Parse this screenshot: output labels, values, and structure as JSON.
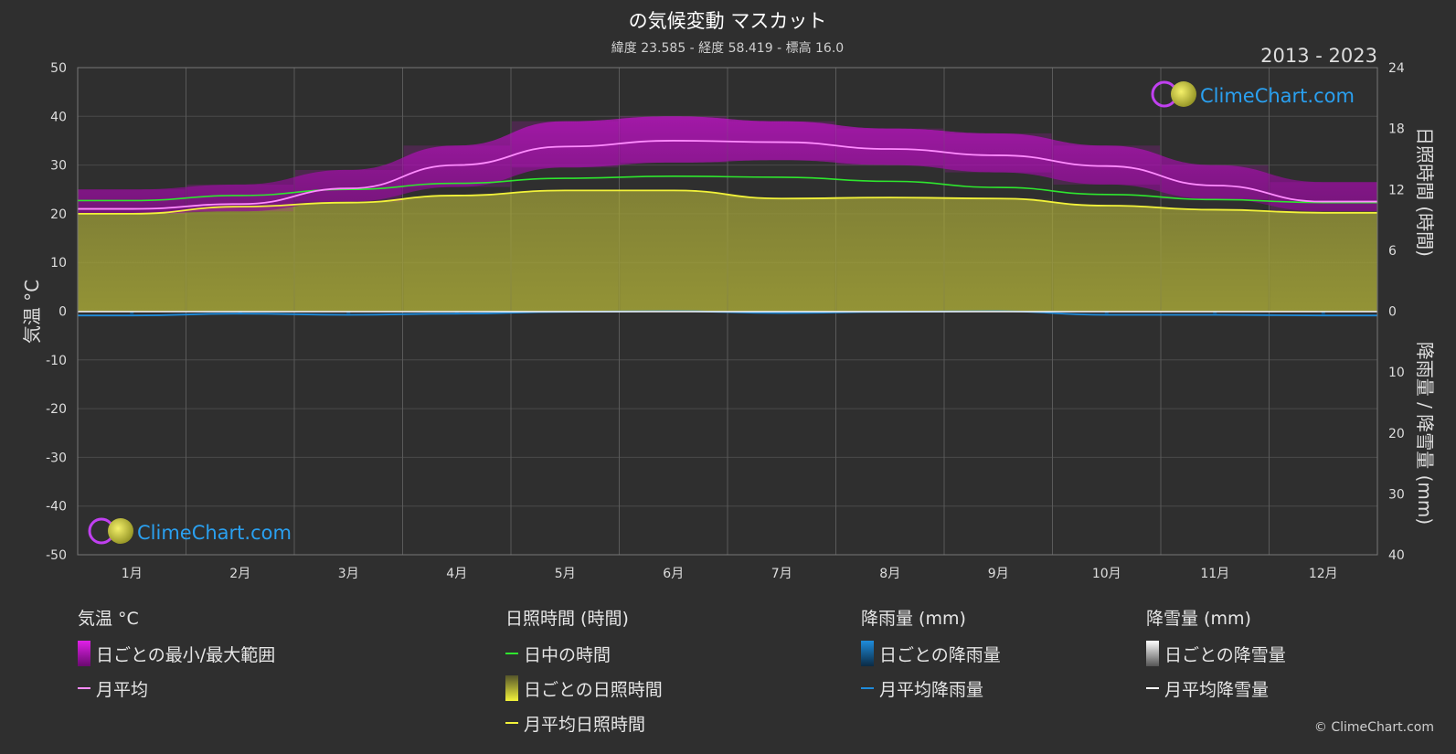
{
  "title": "の気候変動 マスカット",
  "subtitle": "緯度 23.585 - 経度 58.419 - 標高 16.0",
  "period": "2013 - 2023",
  "brand": "ClimeChart.com",
  "copyright": "© ClimeChart.com",
  "colors": {
    "background": "#2f2f2f",
    "temp_range": "#d010d8",
    "temp_avg": "#ff8cff",
    "daylight": "#2ee62e",
    "sunshine_fill": "#b9b934",
    "sunshine_avg": "#f2f23a",
    "rain": "#1e8cdc",
    "snow": "#ffffff"
  },
  "chart_data": {
    "type": "area",
    "months": [
      "1月",
      "2月",
      "3月",
      "4月",
      "5月",
      "6月",
      "7月",
      "8月",
      "9月",
      "10月",
      "11月",
      "12月"
    ],
    "left_axis": {
      "label": "気温 °C",
      "min": -50,
      "max": 50,
      "ticks": [
        50,
        40,
        30,
        20,
        10,
        0,
        -10,
        -20,
        -30,
        -40,
        -50
      ]
    },
    "right_axis_top": {
      "label": "日照時間 (時間)",
      "min": 0,
      "max": 24,
      "ticks": [
        24,
        18,
        12,
        6,
        0
      ]
    },
    "right_axis_bottom": {
      "label": "降雨量 / 降雪量 (mm)",
      "min": 0,
      "max": 40,
      "ticks": [
        0,
        10,
        20,
        30,
        40
      ]
    },
    "grid": true,
    "series": [
      {
        "name": "日ごとの最小/最大範囲",
        "kind": "range",
        "min": [
          20.0,
          20.5,
          22.5,
          25.5,
          29.5,
          30.5,
          31.0,
          30.0,
          28.5,
          26.0,
          23.0,
          20.5
        ],
        "max": [
          25.0,
          26.0,
          29.0,
          34.0,
          39.0,
          40.0,
          39.0,
          37.5,
          36.5,
          34.0,
          30.0,
          26.5
        ]
      },
      {
        "name": "月平均",
        "kind": "temp",
        "values": [
          21.0,
          22.0,
          25.2,
          30.0,
          33.8,
          35.0,
          34.7,
          33.3,
          32.0,
          29.8,
          25.8,
          22.5
        ]
      },
      {
        "name": "日中の時間",
        "kind": "daylight",
        "values": [
          10.9,
          11.4,
          12.0,
          12.6,
          13.1,
          13.3,
          13.2,
          12.8,
          12.2,
          11.5,
          11.0,
          10.7
        ]
      },
      {
        "name": "日ごとの日照時間",
        "kind": "sunshine_fill",
        "values": [
          9.6,
          10.3,
          10.7,
          11.4,
          11.9,
          11.9,
          11.1,
          11.2,
          11.1,
          10.4,
          10.0,
          9.7
        ]
      },
      {
        "name": "月平均日照時間",
        "kind": "sunshine",
        "values": [
          9.6,
          10.3,
          10.7,
          11.4,
          11.9,
          11.9,
          11.1,
          11.2,
          11.1,
          10.4,
          10.0,
          9.7
        ]
      },
      {
        "name": "月平均降雨量",
        "kind": "rain",
        "values": [
          0.7,
          0.4,
          0.6,
          0.4,
          0.1,
          0.0,
          0.3,
          0.1,
          0.0,
          0.6,
          0.6,
          0.7
        ]
      },
      {
        "name": "月平均降雪量",
        "kind": "snow",
        "values": [
          0,
          0,
          0,
          0,
          0,
          0,
          0,
          0,
          0,
          0,
          0,
          0
        ]
      }
    ]
  },
  "legend": {
    "temp": {
      "header": "気温 °C",
      "items": [
        "日ごとの最小/最大範囲",
        "月平均"
      ]
    },
    "sun": {
      "header": "日照時間 (時間)",
      "items": [
        "日中の時間",
        "日ごとの日照時間",
        "月平均日照時間"
      ]
    },
    "rain": {
      "header": "降雨量 (mm)",
      "items": [
        "日ごとの降雨量",
        "月平均降雨量"
      ]
    },
    "snow": {
      "header": "降雪量 (mm)",
      "items": [
        "日ごとの降雪量",
        "月平均降雪量"
      ]
    }
  }
}
